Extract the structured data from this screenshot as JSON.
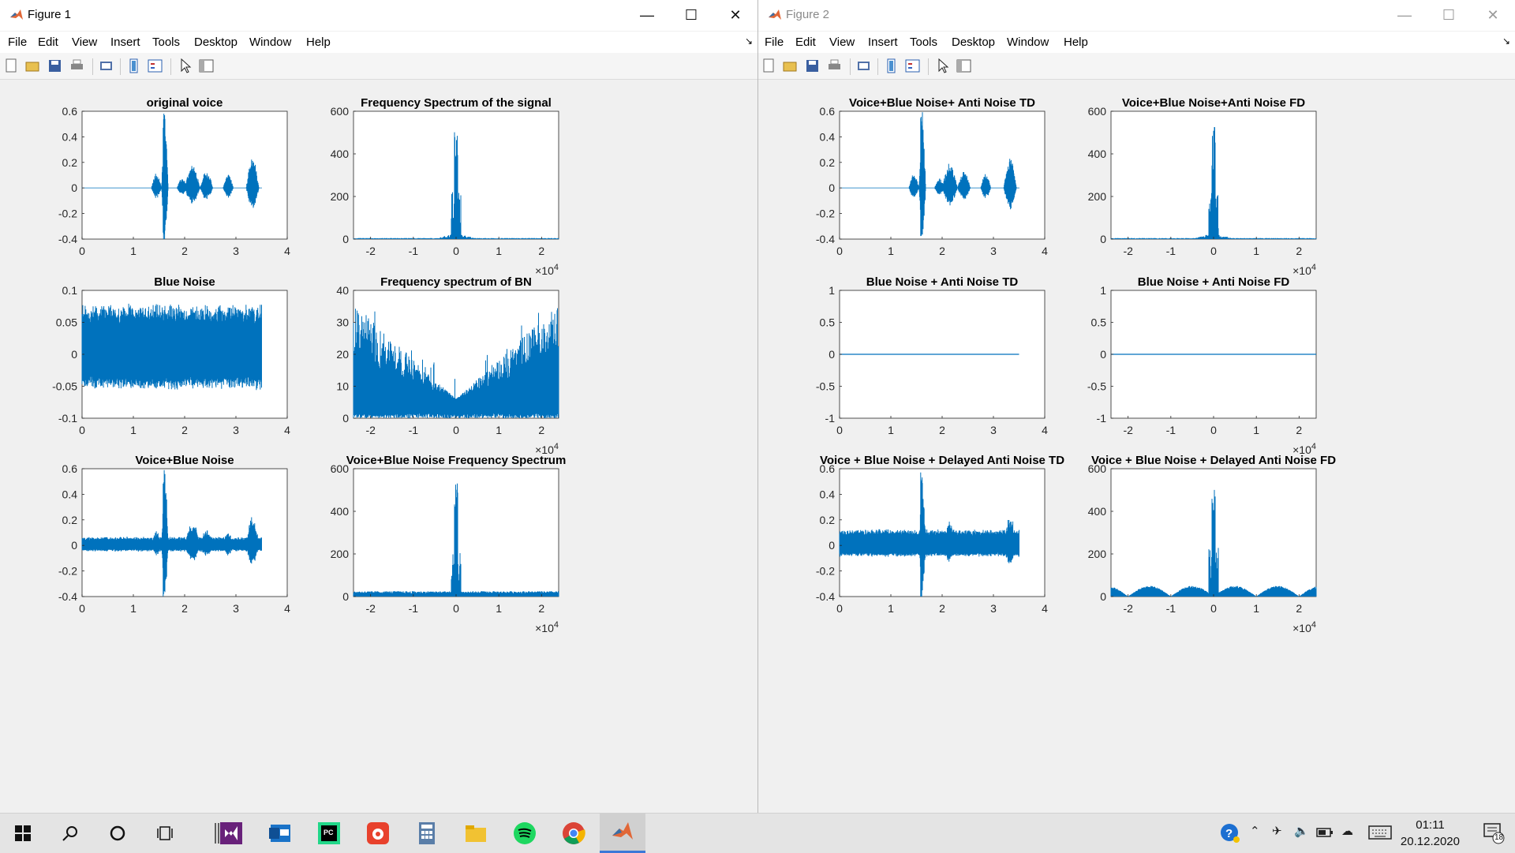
{
  "windows": [
    {
      "title": "Figure 1",
      "menu": [
        "File",
        "Edit",
        "View",
        "Insert",
        "Tools",
        "Desktop",
        "Window",
        "Help"
      ],
      "plots": [
        {
          "title": "original voice",
          "kind": "voice",
          "xticks": [
            "0",
            "1",
            "2",
            "3",
            "4"
          ],
          "yticks": [
            "0.6",
            "0.4",
            "0.2",
            "0",
            "-0.2",
            "-0.4"
          ],
          "ylim": [
            -0.4,
            0.6
          ],
          "xlim": [
            0,
            4
          ],
          "exponent": ""
        },
        {
          "title": "Frequency Spectrum of the signal",
          "kind": "spectrum",
          "xticks": [
            "-2",
            "-1",
            "0",
            "1",
            "2"
          ],
          "yticks": [
            "600",
            "400",
            "200",
            "0"
          ],
          "ylim": [
            0,
            600
          ],
          "xlim": [
            -2.4,
            2.4
          ],
          "exponent": "4"
        },
        {
          "title": "Blue Noise",
          "kind": "noise",
          "xticks": [
            "0",
            "1",
            "2",
            "3",
            "4"
          ],
          "yticks": [
            "0.1",
            "0.05",
            "0",
            "-0.05",
            "-0.1"
          ],
          "ylim": [
            -0.1,
            0.1
          ],
          "xlim": [
            0,
            4
          ],
          "exponent": ""
        },
        {
          "title": "Frequency spectrum of BN",
          "kind": "vspectrum",
          "xticks": [
            "-2",
            "-1",
            "0",
            "1",
            "2"
          ],
          "yticks": [
            "40",
            "30",
            "20",
            "10",
            "0"
          ],
          "ylim": [
            0,
            40
          ],
          "xlim": [
            -2.4,
            2.4
          ],
          "exponent": "4"
        },
        {
          "title": "Voice+Blue Noise",
          "kind": "voicenoise",
          "xticks": [
            "0",
            "1",
            "2",
            "3",
            "4"
          ],
          "yticks": [
            "0.6",
            "0.4",
            "0.2",
            "0",
            "-0.2",
            "-0.4"
          ],
          "ylim": [
            -0.4,
            0.6
          ],
          "xlim": [
            0,
            4
          ],
          "exponent": ""
        },
        {
          "title": "Voice+Blue Noise Frequency Spectrum",
          "kind": "spectrumfloor",
          "xticks": [
            "-2",
            "-1",
            "0",
            "1",
            "2"
          ],
          "yticks": [
            "600",
            "400",
            "200",
            "0"
          ],
          "ylim": [
            0,
            600
          ],
          "xlim": [
            -2.4,
            2.4
          ],
          "exponent": "4"
        }
      ]
    },
    {
      "title": "Figure 2",
      "menu": [
        "File",
        "Edit",
        "View",
        "Insert",
        "Tools",
        "Desktop",
        "Window",
        "Help"
      ],
      "plots": [
        {
          "title": "Voice+Blue Noise+ Anti Noise TD",
          "kind": "voice",
          "xticks": [
            "0",
            "1",
            "2",
            "3",
            "4"
          ],
          "yticks": [
            "0.6",
            "0.4",
            "0.2",
            "0",
            "-0.2",
            "-0.4"
          ],
          "ylim": [
            -0.4,
            0.6
          ],
          "xlim": [
            0,
            4
          ],
          "exponent": ""
        },
        {
          "title": "Voice+Blue Noise+Anti Noise FD",
          "kind": "spectrum",
          "xticks": [
            "-2",
            "-1",
            "0",
            "1",
            "2"
          ],
          "yticks": [
            "600",
            "400",
            "200",
            "0"
          ],
          "ylim": [
            0,
            600
          ],
          "xlim": [
            -2.4,
            2.4
          ],
          "exponent": "4"
        },
        {
          "title": "Blue Noise + Anti Noise TD",
          "kind": "flat",
          "xticks": [
            "0",
            "1",
            "2",
            "3",
            "4"
          ],
          "yticks": [
            "1",
            "0.5",
            "0",
            "-0.5",
            "-1"
          ],
          "ylim": [
            -1,
            1
          ],
          "xlim": [
            0,
            4
          ],
          "exponent": ""
        },
        {
          "title": "Blue Noise + Anti Noise FD",
          "kind": "flatfull",
          "xticks": [
            "-2",
            "-1",
            "0",
            "1",
            "2"
          ],
          "yticks": [
            "1",
            "0.5",
            "0",
            "-0.5",
            "-1"
          ],
          "ylim": [
            -1,
            1
          ],
          "xlim": [
            -2.4,
            2.4
          ],
          "exponent": "4"
        },
        {
          "title": "Voice + Blue Noise + Delayed Anti Noise TD",
          "kind": "voicenoise2",
          "xticks": [
            "0",
            "1",
            "2",
            "3",
            "4"
          ],
          "yticks": [
            "0.6",
            "0.4",
            "0.2",
            "0",
            "-0.2",
            "-0.4"
          ],
          "ylim": [
            -0.4,
            0.6
          ],
          "xlim": [
            0,
            4
          ],
          "exponent": ""
        },
        {
          "title": "Voice + Blue Noise + Delayed Anti Noise FD",
          "kind": "spectrumbumps",
          "xticks": [
            "-2",
            "-1",
            "0",
            "1",
            "2"
          ],
          "yticks": [
            "600",
            "400",
            "200",
            "0"
          ],
          "ylim": [
            0,
            600
          ],
          "xlim": [
            -2.4,
            2.4
          ],
          "exponent": "4"
        }
      ]
    }
  ],
  "axis_multiplier_base": "×10",
  "colors": {
    "line": "#0072bd",
    "axes_bg": "#ffffff",
    "figure_bg": "#f0f0f0"
  },
  "taskbar": {
    "apps": [
      "start-icon",
      "search-icon",
      "cortana-icon",
      "task-view-icon",
      "visual-studio-icon",
      "outlook-icon",
      "pycharm-icon",
      "app-red-icon",
      "calculator-icon",
      "file-explorer-icon",
      "spotify-icon",
      "chrome-icon",
      "matlab-icon"
    ],
    "clock_time": "01:11",
    "clock_date": "20.12.2020",
    "notification_count": "18"
  }
}
